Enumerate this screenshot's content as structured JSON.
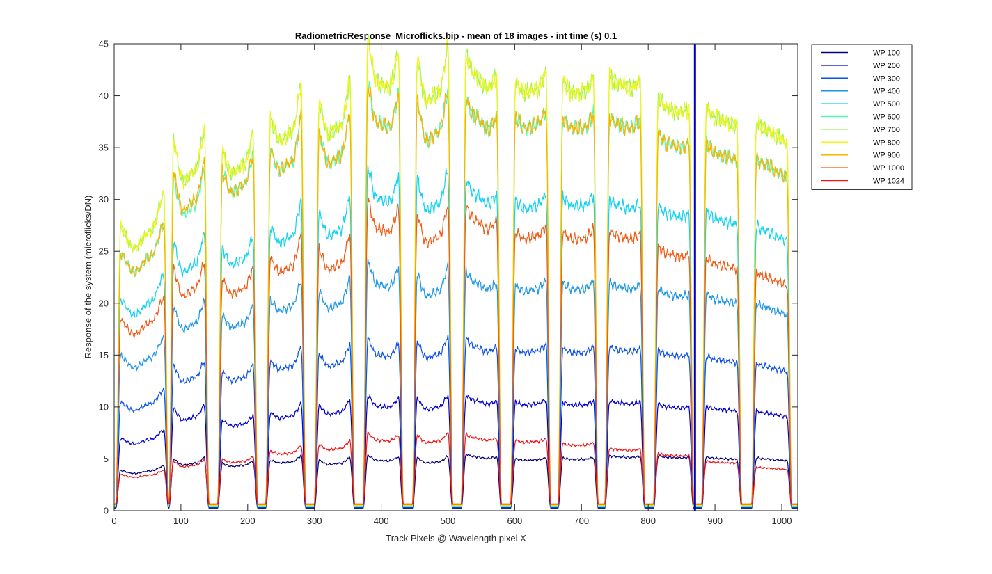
{
  "chart_data": {
    "type": "line",
    "title": "RadiometricResponse_Microflicks.bip - mean of 18 images - int time (s) 0.1",
    "xlabel": "Track Pixels @ Wavelength pixel X",
    "ylabel": "Response of the system (microflicks/DN)",
    "xlim": [
      0,
      1024
    ],
    "ylim": [
      0,
      45
    ],
    "xticks": [
      0,
      100,
      200,
      300,
      400,
      500,
      600,
      700,
      800,
      900,
      1000
    ],
    "yticks": [
      0,
      5,
      10,
      15,
      20,
      25,
      30,
      35,
      40,
      45
    ],
    "grid": false,
    "legend_position": "outside-top-right",
    "vertical_marker": {
      "x": 870,
      "color": "#0000c0"
    },
    "bands": {
      "centers": [
        42,
        112,
        185,
        257,
        330,
        403,
        477,
        550,
        624,
        695,
        765,
        838,
        910,
        985
      ],
      "shapes": [
        [
          1.0,
          0.92,
          0.98,
          1.12
        ],
        [
          1.05,
          0.92,
          0.95,
          1.08
        ],
        [
          1.0,
          0.93,
          0.95,
          1.05
        ],
        [
          1.0,
          0.94,
          0.96,
          1.1
        ],
        [
          1.02,
          0.93,
          0.95,
          1.08
        ],
        [
          1.08,
          0.97,
          0.96,
          1.05
        ],
        [
          1.05,
          0.94,
          0.96,
          1.08
        ],
        [
          1.05,
          1.0,
          0.97,
          1.0
        ],
        [
          1.0,
          0.97,
          0.98,
          1.02
        ],
        [
          1.0,
          0.97,
          0.97,
          1.01
        ],
        [
          1.0,
          0.98,
          0.97,
          0.99
        ],
        [
          1.0,
          0.97,
          0.96,
          0.97
        ],
        [
          1.0,
          0.97,
          0.96,
          0.95
        ],
        [
          1.0,
          0.98,
          0.96,
          0.94
        ]
      ]
    },
    "series": [
      {
        "name": "WP 100",
        "color": "#00007f",
        "levels": [
          3.9,
          4.8,
          4.6,
          4.9,
          4.8,
          5.0,
          4.9,
          5.2,
          5.0,
          5.1,
          5.3,
          5.3,
          5.2,
          5.1
        ]
      },
      {
        "name": "WP 200",
        "color": "#0000cd",
        "levels": [
          7.0,
          9.5,
          8.8,
          9.5,
          10.0,
          10.4,
          10.4,
          10.6,
          10.5,
          10.5,
          10.6,
          10.3,
          10.1,
          9.6
        ]
      },
      {
        "name": "WP 300",
        "color": "#0a50e6",
        "levels": [
          10.5,
          13.5,
          13.5,
          14.5,
          15.0,
          15.5,
          15.7,
          15.8,
          15.7,
          15.7,
          15.8,
          15.5,
          15.0,
          14.2
        ]
      },
      {
        "name": "WP 400",
        "color": "#1e96e6",
        "levels": [
          15.0,
          19.0,
          19.0,
          20.5,
          21.0,
          22.5,
          22.0,
          22.0,
          21.8,
          22.0,
          22.0,
          21.5,
          21.0,
          20.0
        ]
      },
      {
        "name": "WP 500",
        "color": "#14d2f0",
        "levels": [
          20.5,
          25.0,
          25.5,
          27.5,
          28.5,
          31.0,
          30.8,
          30.5,
          30.0,
          30.3,
          30.0,
          29.5,
          29.0,
          27.5
        ]
      },
      {
        "name": "WP 600",
        "color": "#5af5b4",
        "levels": [
          25.0,
          31.0,
          33.0,
          35.0,
          36.0,
          38.5,
          38.0,
          38.0,
          38.0,
          38.0,
          38.0,
          36.5,
          35.5,
          34.0
        ]
      },
      {
        "name": "WP 700",
        "color": "#a0f55a",
        "levels": [
          27.5,
          34.5,
          35.0,
          38.0,
          39.0,
          42.5,
          42.0,
          42.0,
          41.5,
          41.5,
          42.0,
          40.0,
          39.0,
          37.5
        ]
      },
      {
        "name": "WP 800",
        "color": "#f0f514",
        "levels": [
          27.5,
          34.5,
          35.0,
          38.0,
          39.0,
          42.5,
          42.0,
          42.0,
          41.5,
          41.5,
          42.0,
          40.0,
          39.0,
          37.5
        ]
      },
      {
        "name": "WP 900",
        "color": "#f5b400",
        "levels": [
          25.0,
          31.5,
          33.0,
          35.0,
          36.0,
          38.5,
          38.0,
          38.0,
          38.0,
          38.0,
          38.0,
          36.5,
          35.5,
          34.0
        ]
      },
      {
        "name": "WP 1000",
        "color": "#f05a14",
        "levels": [
          18.5,
          22.5,
          22.5,
          24.5,
          25.0,
          28.0,
          27.5,
          28.0,
          27.0,
          27.0,
          27.0,
          25.5,
          24.5,
          23.0
        ]
      },
      {
        "name": "WP 1024",
        "color": "#f01414",
        "levels": [
          3.5,
          4.6,
          5.0,
          5.8,
          6.3,
          7.0,
          7.0,
          7.0,
          6.8,
          6.5,
          6.0,
          5.5,
          4.8,
          4.2
        ]
      }
    ]
  }
}
